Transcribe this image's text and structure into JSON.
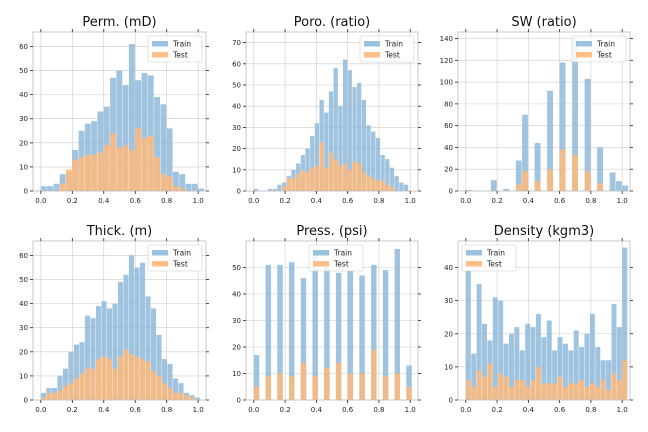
{
  "colors": {
    "train": "#8fbad9",
    "test": "#ffb87a"
  },
  "chart_data": [
    {
      "type": "bar",
      "title": "Perm. (mD)",
      "xlim": [
        0,
        1
      ],
      "ylim": [
        0,
        66
      ],
      "xticks": [
        "0.0",
        "0.2",
        "0.4",
        "0.6",
        "0.8",
        "1.0"
      ],
      "yticks": [
        0,
        10,
        20,
        30,
        40,
        50,
        60
      ],
      "legend": "top-right",
      "grid": true,
      "bin_start": 0.0,
      "bin_width": 0.04,
      "series": [
        {
          "name": "Train",
          "values": [
            2,
            2,
            3,
            7,
            8,
            17,
            25,
            28,
            29,
            33,
            35,
            47,
            50,
            44,
            61,
            46,
            49,
            48,
            39,
            36,
            26,
            8,
            7,
            3,
            3,
            1
          ]
        },
        {
          "name": "Test",
          "values": [
            0,
            0,
            0,
            3,
            9,
            13,
            14,
            15,
            15,
            16,
            19,
            24,
            18,
            19,
            17,
            26,
            22,
            23,
            14,
            7,
            6,
            2,
            1,
            0,
            0,
            0
          ]
        }
      ]
    },
    {
      "type": "bar",
      "title": "Poro. (ratio)",
      "xlim": [
        0,
        1
      ],
      "ylim": [
        0,
        75
      ],
      "xticks": [
        "0.0",
        "0.2",
        "0.4",
        "0.6",
        "0.8",
        "1.0"
      ],
      "yticks": [
        0,
        10,
        20,
        30,
        40,
        50,
        60,
        70
      ],
      "legend": "top-right",
      "grid": true,
      "bin_start": 0.0,
      "bin_width": 0.03,
      "series": [
        {
          "name": "Train",
          "values": [
            1,
            0,
            0,
            1,
            1,
            3,
            4,
            7,
            10,
            13,
            17,
            20,
            26,
            32,
            43,
            37,
            47,
            58,
            40,
            62,
            57,
            49,
            51,
            43,
            31,
            28,
            25,
            17,
            15,
            11,
            7,
            4,
            3
          ]
        },
        {
          "name": "Test",
          "values": [
            0,
            0,
            0,
            0,
            0,
            0,
            2,
            6,
            6,
            8,
            10,
            9,
            11,
            12,
            23,
            11,
            18,
            15,
            12,
            13,
            10,
            14,
            13,
            9,
            7,
            6,
            5,
            5,
            3,
            2,
            0,
            0,
            0
          ]
        }
      ]
    },
    {
      "type": "bar",
      "title": "SW (ratio)",
      "xlim": [
        0,
        1
      ],
      "ylim": [
        0,
        146
      ],
      "xticks": [
        "0.0",
        "0.2",
        "0.4",
        "0.6",
        "0.8",
        "1.0"
      ],
      "yticks": [
        0,
        20,
        40,
        60,
        80,
        100,
        120,
        140
      ],
      "legend": "top-right",
      "grid": true,
      "bin_start": 0.0,
      "bin_width": 0.04,
      "series": [
        {
          "name": "Train",
          "values": [
            1,
            0,
            0,
            0,
            10,
            0,
            2,
            0,
            28,
            70,
            0,
            44,
            0,
            92,
            0,
            118,
            0,
            140,
            0,
            103,
            0,
            40,
            0,
            17,
            9,
            5
          ]
        },
        {
          "name": "Test",
          "values": [
            0,
            0,
            0,
            0,
            0,
            0,
            0,
            0,
            6,
            18,
            0,
            9,
            0,
            20,
            0,
            38,
            0,
            33,
            0,
            18,
            0,
            7,
            0,
            0,
            0,
            0
          ]
        }
      ]
    },
    {
      "type": "bar",
      "title": "Thick. (m)",
      "xlim": [
        0,
        1
      ],
      "ylim": [
        0,
        66
      ],
      "xticks": [
        "0.0",
        "0.2",
        "0.4",
        "0.6",
        "0.8",
        "1.0"
      ],
      "yticks": [
        0,
        10,
        20,
        30,
        40,
        50,
        60
      ],
      "legend": "top-right",
      "grid": true,
      "bin_start": 0.0,
      "bin_width": 0.035,
      "series": [
        {
          "name": "Train",
          "values": [
            3,
            5,
            5,
            10,
            13,
            20,
            23,
            24,
            35,
            34,
            39,
            41,
            38,
            40,
            49,
            52,
            60,
            55,
            57,
            43,
            38,
            27,
            17,
            15,
            9,
            7,
            3,
            2,
            1
          ]
        },
        {
          "name": "Test",
          "values": [
            1,
            3,
            3,
            4,
            6,
            7,
            9,
            11,
            13,
            13,
            17,
            18,
            17,
            13,
            18,
            21,
            19,
            18,
            17,
            16,
            12,
            10,
            7,
            5,
            3,
            3,
            2,
            1,
            0
          ]
        }
      ]
    },
    {
      "type": "bar",
      "title": "Press. (psi)",
      "xlim": [
        0,
        1
      ],
      "ylim": [
        0,
        60
      ],
      "xticks": [
        "0.0",
        "0.2",
        "0.4",
        "0.6",
        "0.8",
        "1.0"
      ],
      "yticks": [
        0,
        10,
        20,
        30,
        40,
        50
      ],
      "legend": "top-center",
      "grid": true,
      "bin_start": 0.0,
      "bin_width": 0.0375,
      "series": [
        {
          "name": "Train",
          "values": [
            17,
            0,
            51,
            0,
            51,
            0,
            52,
            0,
            46,
            0,
            55,
            0,
            50,
            0,
            48,
            0,
            49,
            0,
            47,
            0,
            51,
            0,
            49,
            0,
            57,
            0,
            13
          ]
        },
        {
          "name": "Test",
          "values": [
            5,
            0,
            9,
            0,
            10,
            0,
            9,
            0,
            14,
            0,
            9,
            0,
            12,
            0,
            14,
            0,
            10,
            0,
            10,
            0,
            19,
            0,
            9,
            0,
            10,
            0,
            5
          ]
        }
      ]
    },
    {
      "type": "bar",
      "title": "Density (kgm3)",
      "xlim": [
        0,
        1
      ],
      "ylim": [
        0,
        48
      ],
      "xticks": [
        "0.0",
        "0.2",
        "0.4",
        "0.6",
        "0.8",
        "1.0"
      ],
      "yticks": [
        0,
        10,
        20,
        30,
        40
      ],
      "legend": "top-left",
      "grid": true,
      "bin_start": 0.0,
      "bin_width": 0.0345,
      "series": [
        {
          "name": "Train",
          "values": [
            39,
            14,
            35,
            23,
            18,
            31,
            30,
            17,
            20,
            22,
            15,
            23,
            22,
            26,
            19,
            24,
            15,
            19,
            17,
            15,
            21,
            16,
            20,
            26,
            16,
            12,
            12,
            29,
            22,
            46
          ]
        },
        {
          "name": "Test",
          "values": [
            6,
            4,
            9,
            7,
            11,
            4,
            8,
            7,
            4,
            6,
            6,
            4,
            6,
            10,
            5,
            5,
            5,
            7,
            4,
            5,
            5,
            6,
            4,
            5,
            4,
            6,
            3,
            8,
            6,
            12
          ]
        }
      ]
    }
  ]
}
